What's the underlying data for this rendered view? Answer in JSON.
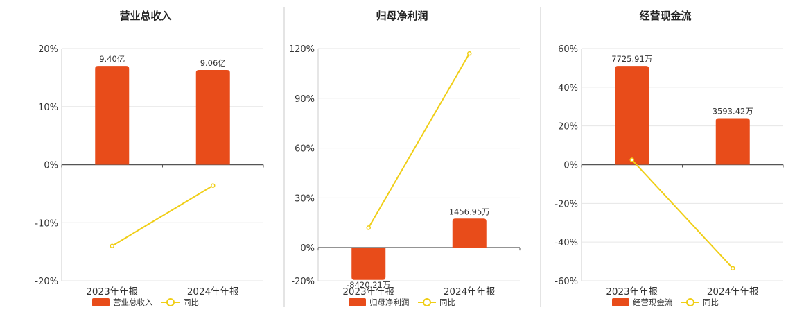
{
  "colors": {
    "bar": "#E84C1A",
    "line": "#F0CE16",
    "grid": "#e6e6e6",
    "axis": "#555555",
    "divider": "#c8c8c8"
  },
  "chart_data": [
    {
      "type": "bar",
      "title": "营业总收入",
      "categories": [
        "2023年年报",
        "2024年年报"
      ],
      "y_ticks": [
        "20%",
        "10%",
        "0%",
        "-10%",
        "-20%"
      ],
      "ylim": [
        -20,
        20
      ],
      "series": [
        {
          "name": "营业总收入",
          "kind": "bar",
          "values": [
            17,
            16.3
          ],
          "labels": [
            "9.40亿",
            "9.06亿"
          ]
        },
        {
          "name": "同比",
          "kind": "line",
          "values": [
            -14,
            -3.6
          ]
        }
      ],
      "legend": "bottom"
    },
    {
      "type": "bar",
      "title": "归母净利润",
      "categories": [
        "2023年年报",
        "2024年年报"
      ],
      "y_ticks": [
        "120%",
        "90%",
        "60%",
        "30%",
        "0%",
        "-20%"
      ],
      "ylim": [
        -20,
        120
      ],
      "series": [
        {
          "name": "归母净利润",
          "kind": "bar",
          "values": [
            -19.5,
            17.5
          ],
          "labels": [
            "-8420.21万",
            "1456.95万"
          ]
        },
        {
          "name": "同比",
          "kind": "line",
          "values": [
            12,
            117
          ]
        }
      ],
      "legend": "bottom"
    },
    {
      "type": "bar",
      "title": "经营现金流",
      "categories": [
        "2023年年报",
        "2024年年报"
      ],
      "y_ticks": [
        "60%",
        "40%",
        "20%",
        "0%",
        "-20%",
        "-40%",
        "-60%"
      ],
      "ylim": [
        -60,
        60
      ],
      "series": [
        {
          "name": "经营现金流",
          "kind": "bar",
          "values": [
            51,
            24
          ],
          "labels": [
            "7725.91万",
            "3593.42万"
          ]
        },
        {
          "name": "同比",
          "kind": "line",
          "values": [
            2.5,
            -53.5
          ]
        }
      ],
      "legend": "bottom"
    }
  ]
}
